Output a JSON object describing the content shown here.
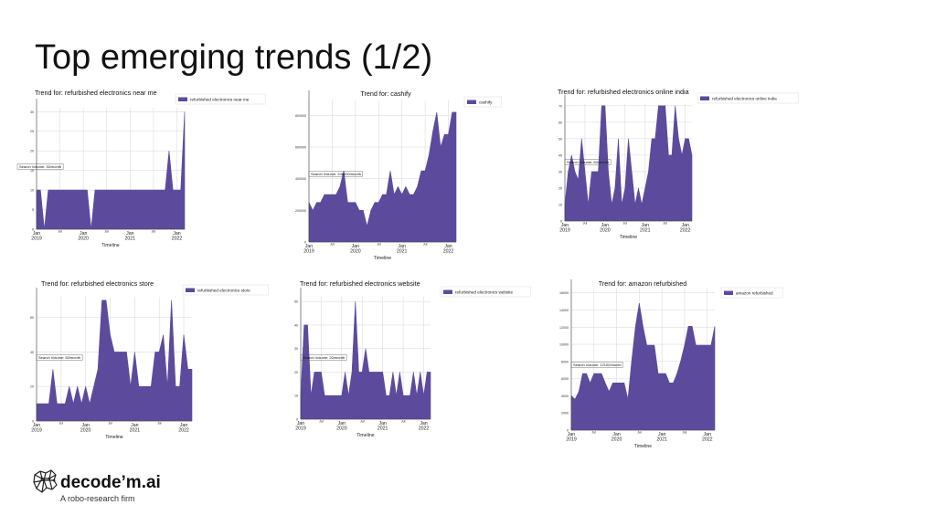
{
  "slide": {
    "title": "Top emerging trends (1/2)",
    "logo_name": "decode’m.ai",
    "logo_tagline": "A robo-research firm"
  },
  "colors": {
    "fill": "#5c4b9c",
    "grid": "#dddddd",
    "axis": "#444444"
  },
  "chart_data": [
    {
      "type": "area",
      "title": "Trend for: refurbished electronics near me",
      "legend": "refurbished electronics near me",
      "annotation": "Search Volume: 30/month",
      "xlabel": "Timeline",
      "x_ticks": [
        {
          "t": 0,
          "label": "Jan\n2019"
        },
        {
          "t": 6,
          "label": "Jul"
        },
        {
          "t": 12,
          "label": "Jan\n2020"
        },
        {
          "t": 18,
          "label": "Jul"
        },
        {
          "t": 24,
          "label": "Jan\n2021"
        },
        {
          "t": 30,
          "label": "Jul"
        },
        {
          "t": 36,
          "label": "Jan\n2022"
        }
      ],
      "y_ticks": [
        5,
        10,
        15,
        20,
        25,
        30
      ],
      "ylim": [
        0,
        31
      ],
      "x_max": 38,
      "values": [
        10,
        10,
        0,
        10,
        10,
        10,
        10,
        10,
        10,
        10,
        10,
        10,
        10,
        10,
        0,
        10,
        10,
        10,
        10,
        10,
        10,
        10,
        10,
        10,
        10,
        10,
        10,
        10,
        10,
        10,
        10,
        10,
        10,
        10,
        20,
        10,
        10,
        10,
        30
      ]
    },
    {
      "type": "area",
      "title": "Trend for: cashify",
      "legend": "cashify",
      "annotation": "Search Volume: 246000/month",
      "xlabel": "Timeline",
      "x_ticks": [
        {
          "t": 0,
          "label": "Jan\n2019"
        },
        {
          "t": 6,
          "label": "Jul"
        },
        {
          "t": 12,
          "label": "Jan\n2020"
        },
        {
          "t": 18,
          "label": "Jul"
        },
        {
          "t": 24,
          "label": "Jan\n2021"
        },
        {
          "t": 30,
          "label": "Jul"
        },
        {
          "t": 36,
          "label": "Jan\n2022"
        }
      ],
      "y_ticks": [
        200000,
        400000,
        600000,
        800000
      ],
      "ylim": [
        0,
        900000
      ],
      "x_max": 38,
      "values": [
        250000,
        200000,
        250000,
        250000,
        300000,
        300000,
        300000,
        300000,
        350000,
        450000,
        250000,
        250000,
        250000,
        200000,
        200000,
        100000,
        200000,
        250000,
        250000,
        300000,
        300000,
        450000,
        300000,
        350000,
        300000,
        350000,
        300000,
        300000,
        350000,
        450000,
        450000,
        550000,
        700000,
        820000,
        600000,
        680000,
        680000,
        820000,
        820000
      ]
    },
    {
      "type": "area",
      "title": "Trend for: refurbished electronics online india",
      "legend": "refurbished electronics online india",
      "annotation": "Search Volume: 50/month",
      "xlabel": "Timeline",
      "x_ticks": [
        {
          "t": 0,
          "label": "Jan\n2019"
        },
        {
          "t": 6,
          "label": "Jul"
        },
        {
          "t": 12,
          "label": "Jan\n2020"
        },
        {
          "t": 18,
          "label": "Jul"
        },
        {
          "t": 24,
          "label": "Jan\n2021"
        },
        {
          "t": 30,
          "label": "Jul"
        },
        {
          "t": 36,
          "label": "Jan\n2022"
        }
      ],
      "y_ticks": [
        10,
        20,
        30,
        40,
        50,
        60,
        70
      ],
      "ylim": [
        0,
        71
      ],
      "x_max": 38,
      "values": [
        10,
        30,
        40,
        30,
        25,
        50,
        30,
        10,
        30,
        30,
        30,
        70,
        70,
        30,
        10,
        20,
        50,
        10,
        20,
        50,
        30,
        10,
        20,
        10,
        20,
        30,
        50,
        50,
        70,
        70,
        70,
        40,
        40,
        70,
        50,
        40,
        50,
        50,
        40
      ]
    },
    {
      "type": "area",
      "title": "Trend for: refurbished electronics store",
      "legend": "refurbished electronics store",
      "annotation": "Search Volume: 50/month",
      "xlabel": "Timeline",
      "x_ticks": [
        {
          "t": 0,
          "label": "Jan\n2019"
        },
        {
          "t": 6,
          "label": "Jul"
        },
        {
          "t": 12,
          "label": "Jan\n2020"
        },
        {
          "t": 18,
          "label": "Jul"
        },
        {
          "t": 24,
          "label": "Jan\n2021"
        },
        {
          "t": 30,
          "label": "Jul"
        },
        {
          "t": 36,
          "label": "Jan\n2022"
        }
      ],
      "y_ticks": [
        20,
        40,
        60
      ],
      "ylim": [
        0,
        72
      ],
      "x_max": 38,
      "values": [
        10,
        10,
        10,
        10,
        30,
        10,
        10,
        10,
        20,
        10,
        20,
        10,
        20,
        10,
        20,
        30,
        70,
        70,
        50,
        40,
        40,
        40,
        40,
        20,
        40,
        20,
        20,
        20,
        20,
        40,
        40,
        50,
        20,
        70,
        20,
        20,
        50,
        30,
        30
      ]
    },
    {
      "type": "area",
      "title": "Trend for: refurbished electronics website",
      "legend": "refurbished electronics website",
      "annotation": "Search Volume: 20/month",
      "xlabel": "Timeline",
      "x_ticks": [
        {
          "t": 0,
          "label": "Jan\n2019"
        },
        {
          "t": 6,
          "label": "Jul"
        },
        {
          "t": 12,
          "label": "Jan\n2020"
        },
        {
          "t": 18,
          "label": "Jul"
        },
        {
          "t": 24,
          "label": "Jan\n2021"
        },
        {
          "t": 30,
          "label": "Jul"
        },
        {
          "t": 36,
          "label": "Jan\n2022"
        }
      ],
      "y_ticks": [
        10,
        20,
        30,
        40,
        50
      ],
      "ylim": [
        0,
        52
      ],
      "x_max": 38,
      "values": [
        10,
        40,
        40,
        10,
        20,
        20,
        20,
        10,
        10,
        10,
        10,
        10,
        10,
        20,
        10,
        20,
        50,
        20,
        20,
        30,
        20,
        20,
        20,
        20,
        20,
        10,
        10,
        20,
        10,
        20,
        10,
        10,
        10,
        20,
        10,
        20,
        10,
        20,
        20
      ]
    },
    {
      "type": "area",
      "title": "Trend for: amazon refurbished",
      "legend": "amazon refurbished",
      "annotation": "Search Volume: 12100/month",
      "xlabel": "Timeline",
      "x_ticks": [
        {
          "t": 0,
          "label": "Jan\n2019"
        },
        {
          "t": 6,
          "label": "Jul"
        },
        {
          "t": 12,
          "label": "Jan\n2020"
        },
        {
          "t": 18,
          "label": "Jul"
        },
        {
          "t": 24,
          "label": "Jan\n2021"
        },
        {
          "t": 30,
          "label": "Jul"
        },
        {
          "t": 36,
          "label": "Jan\n2022"
        }
      ],
      "y_ticks": [
        2000,
        4000,
        6000,
        8000,
        10000,
        12000,
        14000,
        16000
      ],
      "ylim": [
        0,
        16500
      ],
      "x_max": 38,
      "values": [
        4000,
        3600,
        4500,
        6600,
        6600,
        5500,
        6600,
        6600,
        6600,
        5500,
        4500,
        5500,
        5500,
        5500,
        5500,
        3600,
        8100,
        12100,
        14800,
        12100,
        9900,
        9900,
        9900,
        6600,
        6600,
        6600,
        5500,
        5500,
        6600,
        8100,
        9900,
        12100,
        12100,
        9900,
        9900,
        9900,
        9900,
        9900,
        12100
      ]
    }
  ]
}
